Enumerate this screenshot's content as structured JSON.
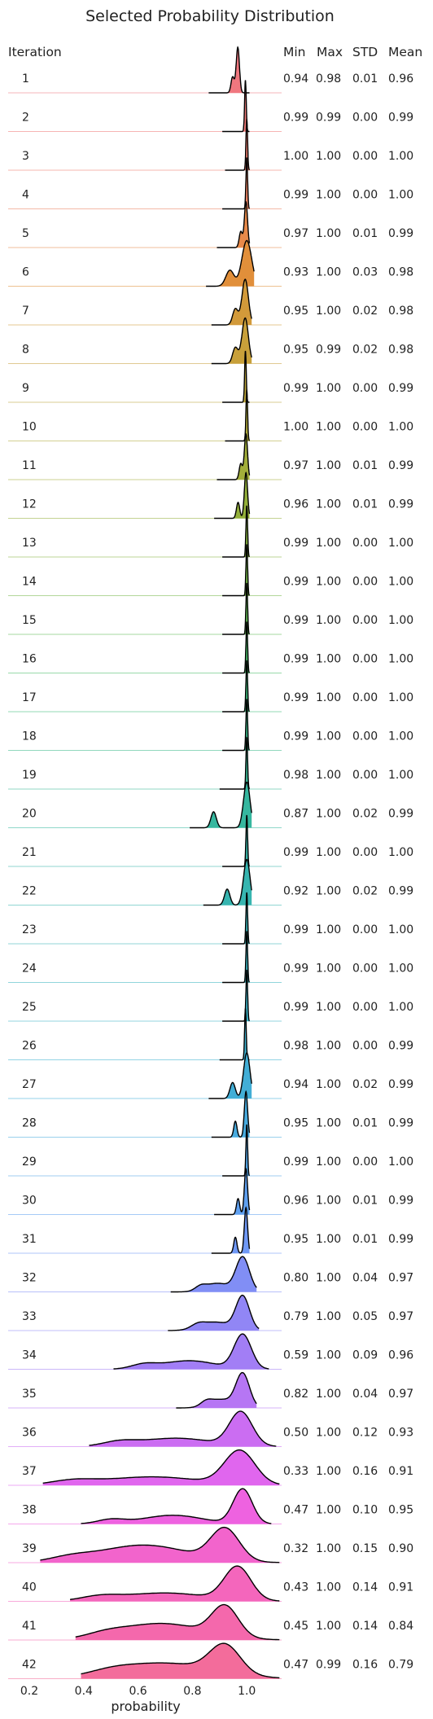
{
  "chart_data": {
    "type": "ridgeline",
    "title": "Selected Probability Distribution",
    "xlabel": "probability",
    "row_header": "Iteration",
    "stat_headers": [
      "Min",
      "Max",
      "STD",
      "Mean"
    ],
    "xlim": [
      0.2,
      1.2
    ],
    "x_ticks": [
      "0.2",
      "0.4",
      "0.6",
      "0.8",
      "1.0"
    ],
    "x_tick_values": [
      0.2,
      0.4,
      0.6,
      0.8,
      1.0
    ],
    "colors": {
      "curve_outline": "#000000"
    },
    "rows": [
      {
        "label": "1",
        "min": "0.94",
        "max": "0.98",
        "std": "0.01",
        "mean": "0.96",
        "color": "#f0777f"
      },
      {
        "label": "2",
        "min": "0.99",
        "max": "0.99",
        "std": "0.00",
        "mean": "0.99",
        "color": "#ef7a78"
      },
      {
        "label": "3",
        "min": "1.00",
        "max": "1.00",
        "std": "0.00",
        "mean": "1.00",
        "color": "#ee7e6e"
      },
      {
        "label": "4",
        "min": "0.99",
        "max": "1.00",
        "std": "0.00",
        "mean": "1.00",
        "color": "#ec8362"
      },
      {
        "label": "5",
        "min": "0.97",
        "max": "1.00",
        "std": "0.01",
        "mean": "0.99",
        "color": "#e88a4a"
      },
      {
        "label": "6",
        "min": "0.93",
        "max": "1.00",
        "std": "0.03",
        "mean": "0.98",
        "color": "#e18f3a"
      },
      {
        "label": "7",
        "min": "0.95",
        "max": "1.00",
        "std": "0.02",
        "mean": "0.98",
        "color": "#d29a3a"
      },
      {
        "label": "8",
        "min": "0.95",
        "max": "0.99",
        "std": "0.02",
        "mean": "0.98",
        "color": "#c8a03a"
      },
      {
        "label": "9",
        "min": "0.99",
        "max": "1.00",
        "std": "0.00",
        "mean": "0.99",
        "color": "#bca53a"
      },
      {
        "label": "10",
        "min": "1.00",
        "max": "1.00",
        "std": "0.00",
        "mean": "1.00",
        "color": "#b0aa3a"
      },
      {
        "label": "11",
        "min": "0.97",
        "max": "1.00",
        "std": "0.01",
        "mean": "0.99",
        "color": "#a2ae3a"
      },
      {
        "label": "12",
        "min": "0.96",
        "max": "1.00",
        "std": "0.01",
        "mean": "0.99",
        "color": "#94b03a"
      },
      {
        "label": "13",
        "min": "0.99",
        "max": "1.00",
        "std": "0.00",
        "mean": "1.00",
        "color": "#86b43e"
      },
      {
        "label": "14",
        "min": "0.99",
        "max": "1.00",
        "std": "0.00",
        "mean": "1.00",
        "color": "#74b846"
      },
      {
        "label": "15",
        "min": "0.99",
        "max": "1.00",
        "std": "0.00",
        "mean": "1.00",
        "color": "#5fba52"
      },
      {
        "label": "16",
        "min": "0.99",
        "max": "1.00",
        "std": "0.00",
        "mean": "1.00",
        "color": "#45bb66"
      },
      {
        "label": "17",
        "min": "0.99",
        "max": "1.00",
        "std": "0.00",
        "mean": "1.00",
        "color": "#3bba7a"
      },
      {
        "label": "18",
        "min": "0.99",
        "max": "1.00",
        "std": "0.00",
        "mean": "1.00",
        "color": "#38b988"
      },
      {
        "label": "19",
        "min": "0.98",
        "max": "1.00",
        "std": "0.00",
        "mean": "1.00",
        "color": "#37b894"
      },
      {
        "label": "20",
        "min": "0.87",
        "max": "1.00",
        "std": "0.02",
        "mean": "0.99",
        "color": "#36b79f"
      },
      {
        "label": "21",
        "min": "0.99",
        "max": "1.00",
        "std": "0.00",
        "mean": "1.00",
        "color": "#36b6a8"
      },
      {
        "label": "22",
        "min": "0.92",
        "max": "1.00",
        "std": "0.02",
        "mean": "0.99",
        "color": "#37b5b0"
      },
      {
        "label": "23",
        "min": "0.99",
        "max": "1.00",
        "std": "0.00",
        "mean": "1.00",
        "color": "#38b4b8"
      },
      {
        "label": "24",
        "min": "0.99",
        "max": "1.00",
        "std": "0.00",
        "mean": "1.00",
        "color": "#39b3bf"
      },
      {
        "label": "25",
        "min": "0.99",
        "max": "1.00",
        "std": "0.00",
        "mean": "1.00",
        "color": "#3bb2c6"
      },
      {
        "label": "26",
        "min": "0.98",
        "max": "1.00",
        "std": "0.00",
        "mean": "0.99",
        "color": "#3eb0ce"
      },
      {
        "label": "27",
        "min": "0.94",
        "max": "1.00",
        "std": "0.02",
        "mean": "0.99",
        "color": "#42aed6"
      },
      {
        "label": "28",
        "min": "0.95",
        "max": "1.00",
        "std": "0.01",
        "mean": "0.99",
        "color": "#48abdf"
      },
      {
        "label": "29",
        "min": "0.99",
        "max": "1.00",
        "std": "0.00",
        "mean": "1.00",
        "color": "#52a6e8"
      },
      {
        "label": "30",
        "min": "0.96",
        "max": "1.00",
        "std": "0.01",
        "mean": "0.99",
        "color": "#5fa0f0"
      },
      {
        "label": "31",
        "min": "0.95",
        "max": "1.00",
        "std": "0.01",
        "mean": "0.99",
        "color": "#6f98f5"
      },
      {
        "label": "32",
        "min": "0.80",
        "max": "1.00",
        "std": "0.04",
        "mean": "0.97",
        "color": "#818ef5"
      },
      {
        "label": "33",
        "min": "0.79",
        "max": "1.00",
        "std": "0.05",
        "mean": "0.97",
        "color": "#9186f5"
      },
      {
        "label": "34",
        "min": "0.59",
        "max": "1.00",
        "std": "0.09",
        "mean": "0.96",
        "color": "#a27ef5"
      },
      {
        "label": "35",
        "min": "0.82",
        "max": "1.00",
        "std": "0.04",
        "mean": "0.97",
        "color": "#b676f4"
      },
      {
        "label": "36",
        "min": "0.50",
        "max": "1.00",
        "std": "0.12",
        "mean": "0.93",
        "color": "#cb6df2"
      },
      {
        "label": "37",
        "min": "0.33",
        "max": "1.00",
        "std": "0.16",
        "mean": "0.91",
        "color": "#e066ee"
      },
      {
        "label": "38",
        "min": "0.47",
        "max": "1.00",
        "std": "0.10",
        "mean": "0.95",
        "color": "#ee62e0"
      },
      {
        "label": "39",
        "min": "0.32",
        "max": "1.00",
        "std": "0.15",
        "mean": "0.90",
        "color": "#f264cc"
      },
      {
        "label": "40",
        "min": "0.43",
        "max": "1.00",
        "std": "0.14",
        "mean": "0.91",
        "color": "#f466bc"
      },
      {
        "label": "41",
        "min": "0.45",
        "max": "1.00",
        "std": "0.14",
        "mean": "0.84",
        "color": "#f468ac"
      },
      {
        "label": "42",
        "min": "0.47",
        "max": "0.99",
        "std": "0.16",
        "mean": "0.79",
        "color": "#f36c9b"
      }
    ]
  }
}
